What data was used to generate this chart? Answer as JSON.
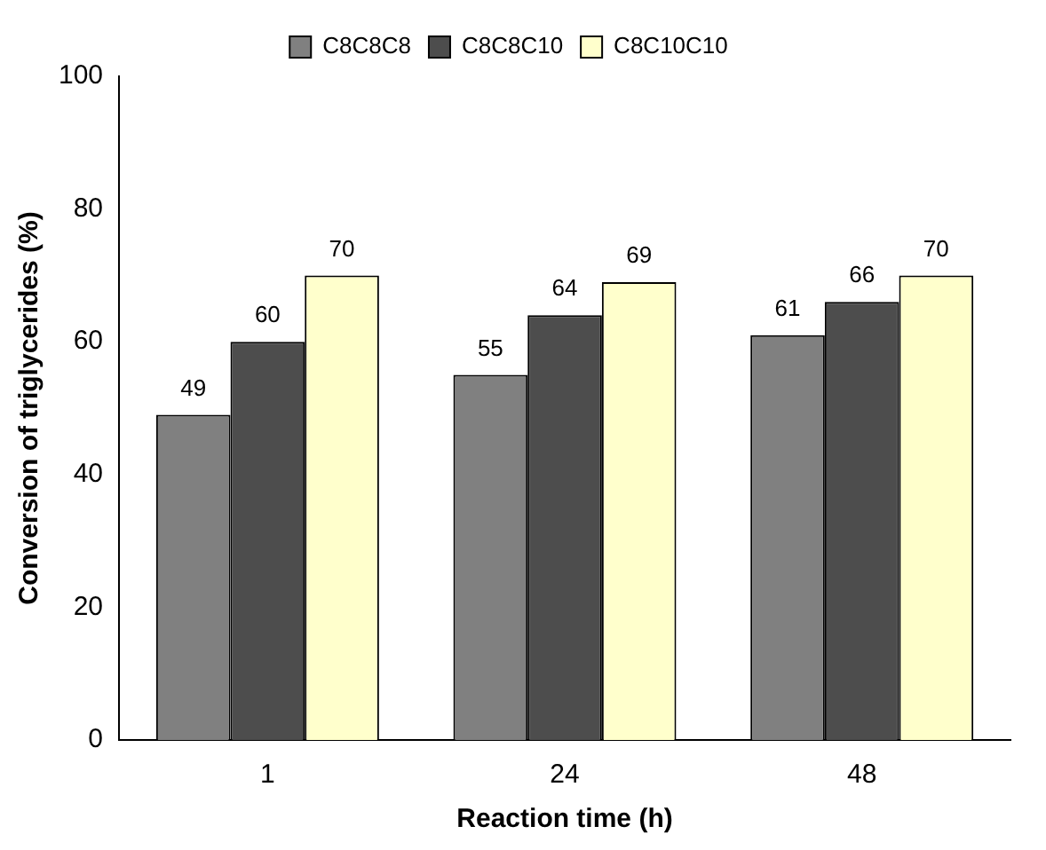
{
  "chart_data": {
    "type": "bar",
    "xlabel": "Reaction time (h)",
    "ylabel": "Conversion of triglycerides (%)",
    "categories": [
      "1",
      "24",
      "48"
    ],
    "series": [
      {
        "name": "C8C8C8",
        "color": "#808080",
        "values": [
          49,
          55,
          61
        ]
      },
      {
        "name": "C8C8C10",
        "color": "#4d4d4d",
        "values": [
          60,
          64,
          66
        ]
      },
      {
        "name": "C8C10C10",
        "color": "#ffffcc",
        "values": [
          70,
          69,
          70
        ]
      }
    ],
    "ylim": [
      0,
      100
    ],
    "yticks": [
      0,
      20,
      40,
      60,
      80,
      100
    ],
    "grid": false,
    "legend": "top",
    "data_labels": true
  }
}
